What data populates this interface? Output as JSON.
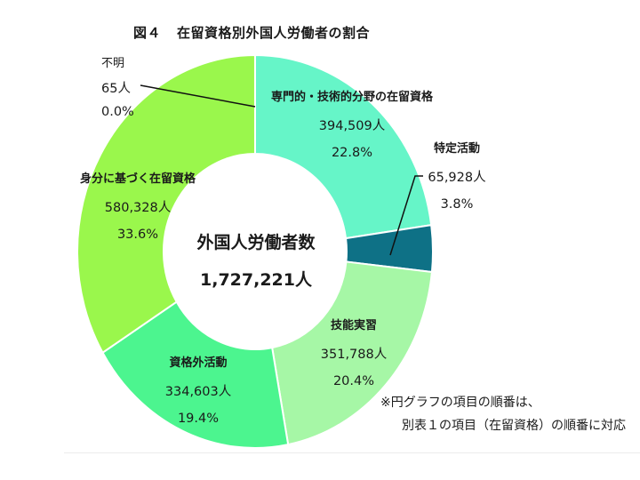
{
  "title": {
    "figure_label": "図４",
    "text": "在留資格別外国人労働者の割合"
  },
  "center": {
    "label": "外国人労働者数",
    "total": "1,727,221人"
  },
  "note": {
    "line1": "※円グラフの項目の順番は、",
    "line2": "別表１の項目（在留資格）の順番に対応"
  },
  "labels": {
    "professional": {
      "name": "専門的・技術的分野の在留資格",
      "value": "394,509人",
      "pct": "22.8%"
    },
    "designated": {
      "name": "特定活動",
      "value": "65,928人",
      "pct": "3.8%"
    },
    "trainee": {
      "name": "技能実習",
      "value": "351,788人",
      "pct": "20.4%"
    },
    "outside": {
      "name": "資格外活動",
      "value": "334,603人",
      "pct": "19.4%"
    },
    "status": {
      "name": "身分に基づく在留資格",
      "value": "580,328人",
      "pct": "33.6%"
    },
    "unknown": {
      "name": "不明",
      "value": "65人",
      "pct": "0.0%"
    }
  },
  "chart_data": {
    "type": "pie",
    "variant": "donut",
    "title": "図４　在留資格別外国人労働者の割合",
    "center_text": [
      "外国人労働者数",
      "1,727,221人"
    ],
    "total": 1727221,
    "unit": "人",
    "direction": "clockwise from 12 o'clock",
    "categories": [
      "専門的・技術的分野の在留資格",
      "特定活動",
      "技能実習",
      "資格外活動",
      "身分に基づく在留資格",
      "不明"
    ],
    "values": [
      394509,
      65928,
      351788,
      334603,
      580328,
      65
    ],
    "percentages": [
      22.8,
      3.8,
      20.4,
      19.4,
      33.6,
      0.0
    ],
    "colors": [
      "#66f5c8",
      "#0e7186",
      "#a6f7a6",
      "#4cf58f",
      "#9af74c",
      "#9af74c"
    ],
    "annotations": [
      "※円グラフの項目の順番は、別表１の項目（在留資格）の順番に対応"
    ],
    "legend": "none (direct labels)"
  }
}
